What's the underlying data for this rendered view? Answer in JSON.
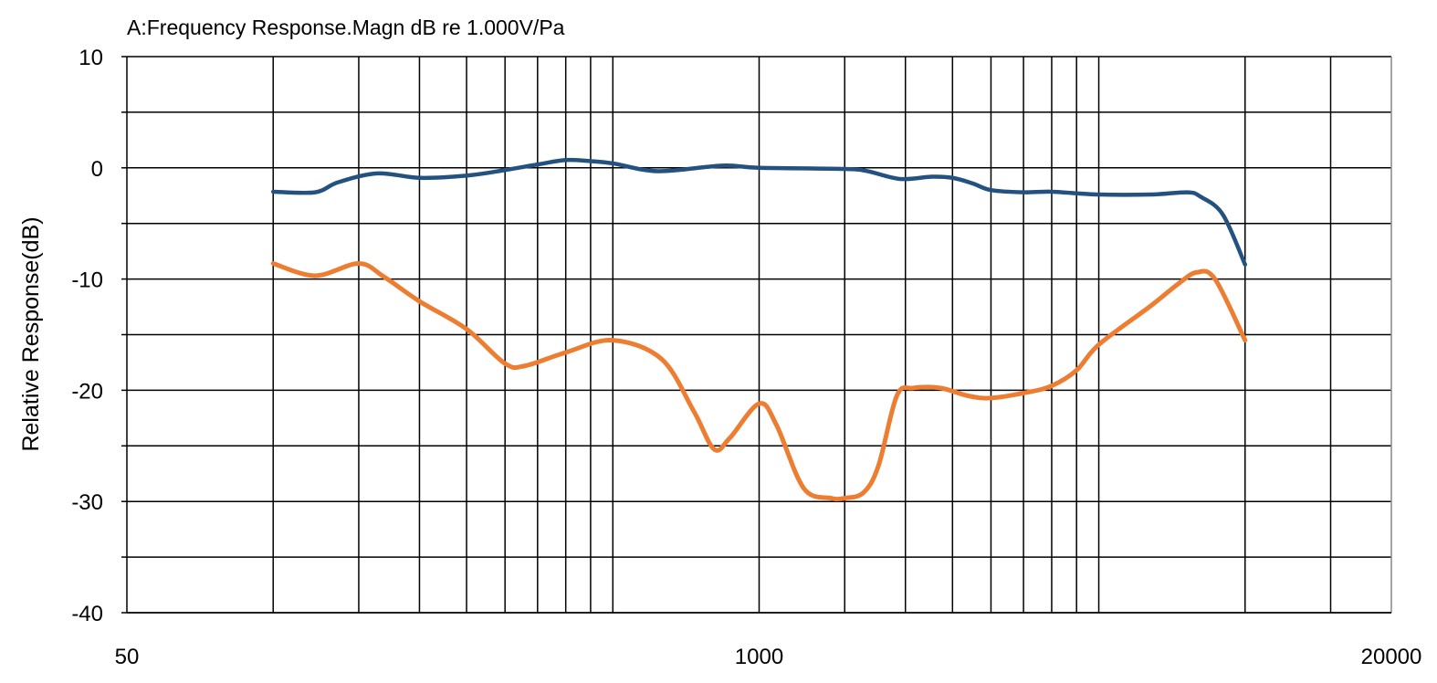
{
  "chart_data": {
    "type": "line",
    "title": "A:Frequency Response.Magn dB re 1.000V/Pa",
    "xlabel": "",
    "ylabel": "Relative Response(dB)",
    "x_scale": "log",
    "xlim": [
      50,
      20000
    ],
    "ylim": [
      -40,
      10
    ],
    "x_tick_labels": [
      "50",
      "1000",
      "20000"
    ],
    "x_ticks": [
      50,
      1000,
      20000
    ],
    "y_ticks": [
      10,
      0,
      -10,
      -20,
      -30,
      -40
    ],
    "y_tick_labels": [
      "10",
      "0",
      "-10",
      "-20",
      "-30",
      "-40"
    ],
    "x_gridlines": [
      100,
      150,
      200,
      250,
      300,
      350,
      400,
      450,
      500,
      1000,
      1500,
      2000,
      2500,
      3000,
      3500,
      4000,
      4500,
      5000,
      10000,
      15000
    ],
    "y_gridlines": [
      10,
      5,
      0,
      -5,
      -10,
      -15,
      -20,
      -25,
      -30,
      -35,
      -40
    ],
    "grid": true,
    "series": [
      {
        "color": "#245280",
        "x": [
          100,
          122,
          136,
          164,
          200,
          250,
          300,
          350,
          400,
          450,
          500,
          620,
          840,
          1000,
          1500,
          1670,
          1950,
          2265,
          2500,
          2750,
          3000,
          3500,
          4000,
          5000,
          6400,
          7600,
          8100,
          9000,
          10000
        ],
        "y": [
          -2.15,
          -2.2,
          -1.3,
          -0.5,
          -0.9,
          -0.7,
          -0.2,
          0.3,
          0.7,
          0.6,
          0.4,
          -0.3,
          0.2,
          0,
          -0.1,
          -0.3,
          -1.0,
          -0.8,
          -0.9,
          -1.4,
          -2.0,
          -2.2,
          -2.15,
          -2.4,
          -2.4,
          -2.2,
          -2.6,
          -4.2,
          -8.7
        ]
      },
      {
        "color": "#ed7d31",
        "x": [
          100,
          122,
          150,
          169,
          200,
          250,
          300,
          330,
          400,
          500,
          630,
          734,
          808,
          870,
          1000,
          1085,
          1235,
          1405,
          1500,
          1640,
          1760,
          1920,
          2075,
          2365,
          2690,
          3000,
          3550,
          4000,
          4500,
          5000,
          6400,
          7300,
          7950,
          8670,
          10000
        ],
        "y": [
          -8.6,
          -9.7,
          -8.6,
          -9.8,
          -12,
          -14.5,
          -17.6,
          -17.8,
          -16.6,
          -15.5,
          -17.2,
          -21.9,
          -25.3,
          -24.3,
          -21.2,
          -23.1,
          -28.8,
          -29.7,
          -29.7,
          -29.2,
          -26.8,
          -20.5,
          -19.8,
          -19.8,
          -20.5,
          -20.7,
          -20.2,
          -19.6,
          -18.2,
          -15.9,
          -12.4,
          -10.4,
          -9.4,
          -10,
          -15.5
        ]
      }
    ]
  }
}
